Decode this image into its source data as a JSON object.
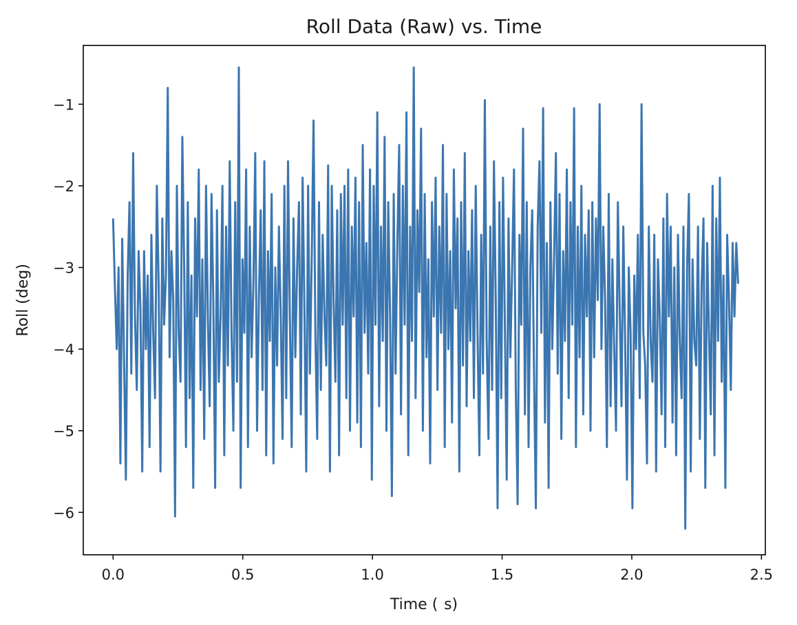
{
  "chart_data": {
    "type": "line",
    "title": "Roll Data (Raw) vs. Time",
    "xlabel": "Time (  s)",
    "ylabel": "Roll (deg)",
    "xlim": [
      -0.115,
      2.515
    ],
    "ylim": [
      -6.52,
      -0.28
    ],
    "grid": false,
    "color": "#3b76b0",
    "xticks": [
      0.0,
      0.5,
      1.0,
      1.5,
      2.0,
      2.5
    ],
    "xtick_labels": [
      "0.0",
      "0.5",
      "1.0",
      "1.5",
      "2.0",
      "2.5"
    ],
    "yticks": [
      -1,
      -2,
      -3,
      -4,
      -5,
      -6
    ],
    "ytick_labels": [
      "−1",
      "−2",
      "−3",
      "−4",
      "−5",
      "−6"
    ],
    "series": [
      {
        "x_start": 0.0,
        "x_end": 2.41,
        "y": [
          -2.4,
          -3.25,
          -4.0,
          -3.0,
          -5.4,
          -2.65,
          -4.1,
          -5.6,
          -3.1,
          -2.2,
          -4.3,
          -1.6,
          -3.6,
          -4.5,
          -2.8,
          -3.5,
          -5.5,
          -2.8,
          -4.0,
          -3.1,
          -5.2,
          -2.6,
          -3.8,
          -4.6,
          -2.0,
          -3.2,
          -5.5,
          -2.4,
          -3.7,
          -3.1,
          -0.8,
          -4.1,
          -2.8,
          -3.4,
          -6.05,
          -2.0,
          -3.8,
          -4.4,
          -1.4,
          -3.0,
          -5.2,
          -2.2,
          -4.6,
          -3.1,
          -5.7,
          -2.4,
          -3.6,
          -1.8,
          -4.5,
          -2.9,
          -5.1,
          -2.0,
          -3.6,
          -4.7,
          -2.1,
          -3.4,
          -5.7,
          -2.3,
          -4.4,
          -3.6,
          -2.0,
          -5.3,
          -2.5,
          -4.2,
          -1.7,
          -3.8,
          -5.0,
          -2.2,
          -4.4,
          -0.55,
          -5.7,
          -2.9,
          -3.8,
          -1.8,
          -5.2,
          -2.5,
          -4.1,
          -3.2,
          -1.6,
          -5.0,
          -3.4,
          -2.3,
          -4.5,
          -1.7,
          -5.3,
          -2.8,
          -3.9,
          -2.1,
          -5.4,
          -3.0,
          -4.2,
          -2.5,
          -3.6,
          -5.1,
          -2.0,
          -4.6,
          -1.7,
          -3.6,
          -5.2,
          -2.4,
          -4.1,
          -3.0,
          -2.2,
          -4.8,
          -1.9,
          -3.5,
          -5.5,
          -2.0,
          -4.3,
          -2.9,
          -1.2,
          -3.8,
          -5.1,
          -2.2,
          -4.5,
          -2.6,
          -3.6,
          -4.2,
          -1.75,
          -5.5,
          -2.0,
          -3.4,
          -4.4,
          -2.3,
          -5.3,
          -2.1,
          -3.7,
          -2.0,
          -4.6,
          -1.8,
          -5.0,
          -2.5,
          -3.6,
          -1.9,
          -4.9,
          -2.2,
          -5.2,
          -1.5,
          -3.8,
          -2.7,
          -4.3,
          -1.8,
          -5.6,
          -2.0,
          -3.7,
          -1.1,
          -4.7,
          -2.5,
          -3.9,
          -1.4,
          -5.0,
          -2.2,
          -3.6,
          -5.8,
          -2.1,
          -4.3,
          -2.7,
          -1.5,
          -4.8,
          -2.0,
          -3.7,
          -1.1,
          -5.3,
          -2.5,
          -3.9,
          -0.55,
          -4.6,
          -2.3,
          -3.3,
          -1.3,
          -5.0,
          -2.1,
          -4.1,
          -2.9,
          -5.4,
          -2.2,
          -3.6,
          -1.9,
          -4.5,
          -2.5,
          -3.8,
          -1.5,
          -5.2,
          -2.1,
          -4.0,
          -2.8,
          -4.9,
          -1.8,
          -3.5,
          -2.4,
          -5.5,
          -2.2,
          -4.2,
          -1.6,
          -4.7,
          -2.8,
          -3.9,
          -2.3,
          -4.6,
          -2.0,
          -3.8,
          -5.3,
          -2.6,
          -4.3,
          -0.95,
          -3.9,
          -5.1,
          -2.5,
          -4.5,
          -1.7,
          -3.4,
          -5.95,
          -2.2,
          -4.6,
          -1.9,
          -3.7,
          -5.6,
          -2.4,
          -4.1,
          -3.0,
          -1.8,
          -4.5,
          -5.9,
          -2.6,
          -3.7,
          -1.3,
          -4.8,
          -2.2,
          -5.2,
          -3.0,
          -2.3,
          -4.3,
          -5.95,
          -2.5,
          -1.7,
          -3.8,
          -1.05,
          -4.9,
          -2.7,
          -5.7,
          -2.2,
          -4.0,
          -2.9,
          -1.6,
          -4.3,
          -2.1,
          -5.1,
          -2.8,
          -3.9,
          -1.8,
          -4.6,
          -2.2,
          -3.7,
          -1.05,
          -5.2,
          -2.5,
          -4.1,
          -2.0,
          -4.8,
          -2.6,
          -3.6,
          -2.3,
          -5.0,
          -2.2,
          -4.1,
          -2.4,
          -3.4,
          -1.0,
          -4.0,
          -2.5,
          -3.4,
          -5.2,
          -2.1,
          -4.7,
          -2.9,
          -4.0,
          -5.0,
          -2.2,
          -3.5,
          -4.7,
          -2.5,
          -3.9,
          -5.6,
          -3.0,
          -3.8,
          -5.95,
          -3.1,
          -4.0,
          -2.6,
          -4.6,
          -1.0,
          -3.8,
          -4.2,
          -5.4,
          -2.5,
          -3.9,
          -4.4,
          -2.6,
          -5.5,
          -2.9,
          -3.6,
          -4.8,
          -2.4,
          -5.2,
          -2.1,
          -3.6,
          -2.5,
          -4.9,
          -3.0,
          -5.3,
          -2.6,
          -3.9,
          -4.6,
          -2.5,
          -6.2,
          -3.0,
          -2.1,
          -5.5,
          -2.9,
          -3.9,
          -4.2,
          -2.5,
          -5.1,
          -3.2,
          -2.4,
          -5.7,
          -2.7,
          -3.8,
          -4.8,
          -2.0,
          -5.3,
          -2.4,
          -3.9,
          -1.9,
          -4.4,
          -3.1,
          -5.7,
          -2.6,
          -3.4,
          -4.5,
          -2.7,
          -3.6,
          -2.7,
          -3.2
        ]
      }
    ]
  }
}
